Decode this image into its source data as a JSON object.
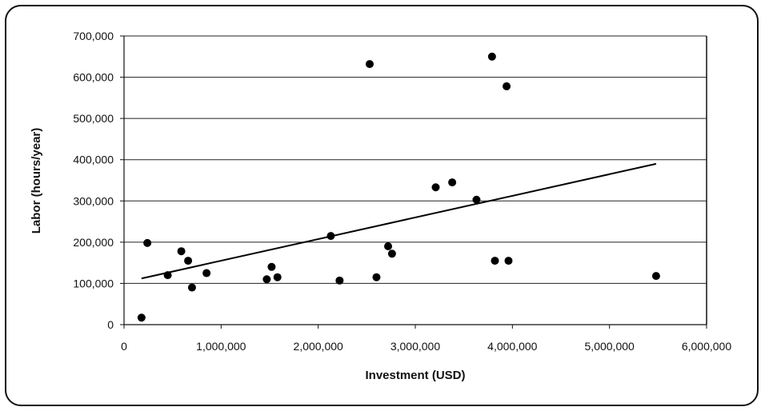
{
  "chart_data": {
    "type": "scatter",
    "title": "",
    "xlabel": "Investment (USD)",
    "ylabel": "Labor (hours/year)",
    "xlim": [
      0,
      6000000
    ],
    "ylim": [
      0,
      700000
    ],
    "x_ticks": [
      0,
      1000000,
      2000000,
      3000000,
      4000000,
      5000000,
      6000000
    ],
    "x_tick_labels": [
      "0",
      "1,000,000",
      "2,000,000",
      "3,000,000",
      "4,000,000",
      "5,000,000",
      "6,000,000"
    ],
    "y_ticks": [
      0,
      100000,
      200000,
      300000,
      400000,
      500000,
      600000,
      700000
    ],
    "y_tick_labels": [
      "0",
      "100,000",
      "200,000",
      "300,000",
      "400,000",
      "500,000",
      "600,000",
      "700,000"
    ],
    "grid": "horizontal",
    "legend": "none",
    "marker_color": "#000000",
    "points": [
      {
        "x": 180000,
        "y": 17000
      },
      {
        "x": 240000,
        "y": 198000
      },
      {
        "x": 450000,
        "y": 120000
      },
      {
        "x": 590000,
        "y": 178000
      },
      {
        "x": 660000,
        "y": 155000
      },
      {
        "x": 700000,
        "y": 90000
      },
      {
        "x": 850000,
        "y": 125000
      },
      {
        "x": 1470000,
        "y": 110000
      },
      {
        "x": 1520000,
        "y": 140000
      },
      {
        "x": 1580000,
        "y": 115000
      },
      {
        "x": 2130000,
        "y": 215000
      },
      {
        "x": 2220000,
        "y": 107000
      },
      {
        "x": 2530000,
        "y": 632000
      },
      {
        "x": 2600000,
        "y": 115000
      },
      {
        "x": 2720000,
        "y": 190000
      },
      {
        "x": 2760000,
        "y": 172000
      },
      {
        "x": 3210000,
        "y": 333000
      },
      {
        "x": 3380000,
        "y": 345000
      },
      {
        "x": 3630000,
        "y": 303000
      },
      {
        "x": 3790000,
        "y": 650000
      },
      {
        "x": 3820000,
        "y": 155000
      },
      {
        "x": 3940000,
        "y": 578000
      },
      {
        "x": 3960000,
        "y": 155000
      },
      {
        "x": 5480000,
        "y": 118000
      }
    ],
    "trendline": {
      "x": [
        180000,
        5480000
      ],
      "y": [
        112000,
        390000
      ],
      "color": "#000000"
    }
  }
}
